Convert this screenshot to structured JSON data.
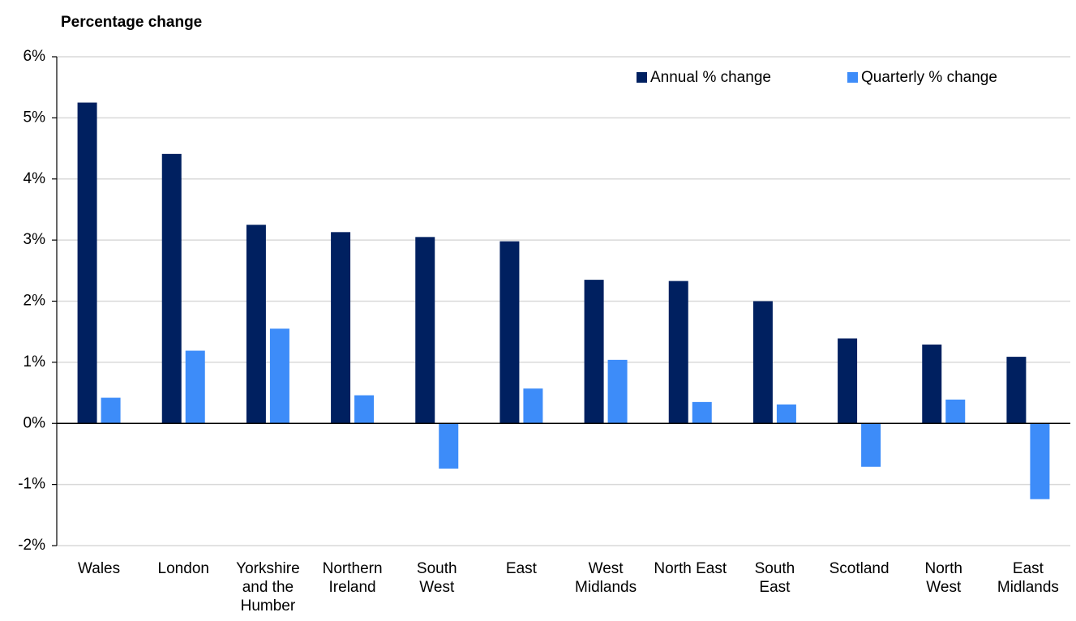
{
  "chart_data": {
    "type": "bar",
    "title": "Percentage change",
    "categories": [
      "Wales",
      "London",
      "Yorkshire and the Humber",
      "Northern Ireland",
      "South West",
      "East",
      "West Midlands",
      "North East",
      "South East",
      "Scotland",
      "North West",
      "East Midlands"
    ],
    "series": [
      {
        "name": "Annual % change",
        "color": "#002060",
        "values": [
          5.25,
          4.41,
          3.25,
          3.13,
          3.05,
          2.98,
          2.35,
          2.33,
          2.0,
          1.39,
          1.29,
          1.09
        ]
      },
      {
        "name": "Quarterly % change",
        "color": "#3d8cf9",
        "values": [
          0.42,
          1.19,
          1.55,
          0.46,
          -0.74,
          0.57,
          1.04,
          0.35,
          0.31,
          -0.71,
          0.39,
          -1.24
        ]
      }
    ],
    "ylim": [
      -2,
      6
    ],
    "yticks": [
      {
        "value": -2,
        "label": "-2%"
      },
      {
        "value": -1,
        "label": "-1%"
      },
      {
        "value": 0,
        "label": "0%"
      },
      {
        "value": 1,
        "label": "1%"
      },
      {
        "value": 2,
        "label": "2%"
      },
      {
        "value": 3,
        "label": "3%"
      },
      {
        "value": 4,
        "label": "4%"
      },
      {
        "value": 5,
        "label": "5%"
      },
      {
        "value": 6,
        "label": "6%"
      }
    ],
    "grid": true,
    "legend": "top-right"
  }
}
